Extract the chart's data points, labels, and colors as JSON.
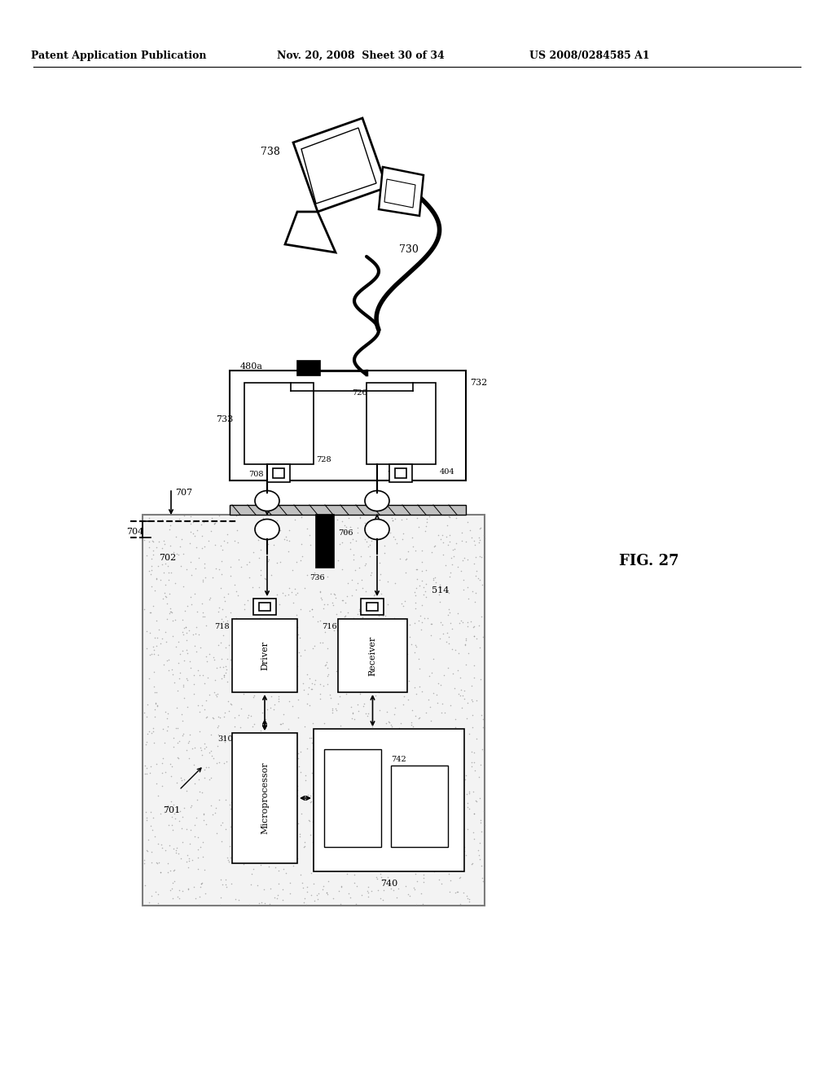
{
  "title_left": "Patent Application Publication",
  "title_mid": "Nov. 20, 2008  Sheet 30 of 34",
  "title_right": "US 2008/0284585 A1",
  "fig_label": "FIG. 27",
  "background": "#ffffff",
  "text_color": "#000000"
}
